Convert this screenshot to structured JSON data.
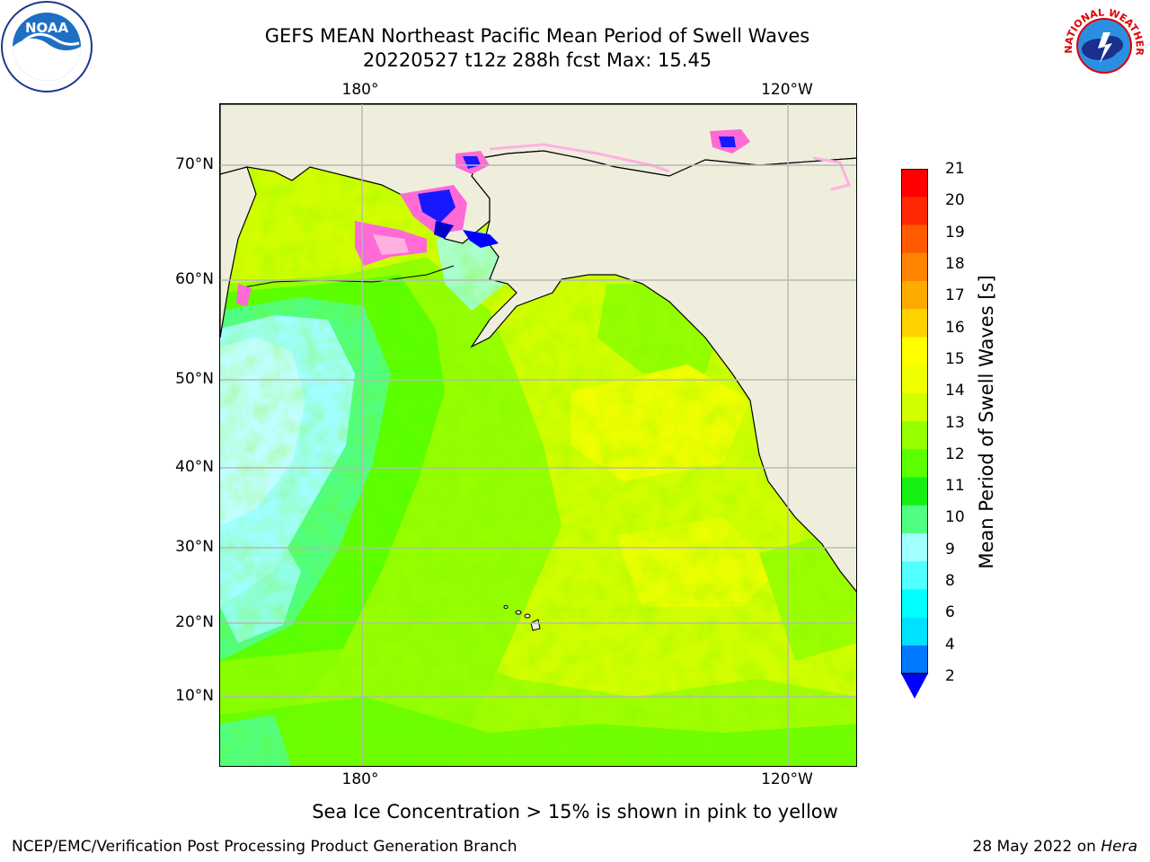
{
  "header": {
    "title_line1": "GEFS MEAN Northeast Pacific Mean Period of Swell Waves",
    "title_line2": "20220527 t12z 288h fcst   Max: 15.45"
  },
  "map": {
    "lon_labels_top": [
      "180°",
      "120°W"
    ],
    "lon_labels_bottom": [
      "180°",
      "120°W"
    ],
    "lat_labels": [
      "70°N",
      "60°N",
      "50°N",
      "40°N",
      "30°N",
      "20°N",
      "10°N"
    ],
    "colors": {
      "land": "#efeedd",
      "coast": "#000000",
      "grid": "#b8b8b8"
    }
  },
  "colorbar": {
    "title": "Mean Period of Swell Waves [s]",
    "tick_labels": [
      "21",
      "20",
      "19",
      "18",
      "17",
      "16",
      "15",
      "14",
      "13",
      "12",
      "11",
      "10",
      "9",
      "8",
      "6",
      "4",
      "2"
    ],
    "colors_top_to_bottom": [
      "#ff0000",
      "#ff2800",
      "#ff5a00",
      "#ff8200",
      "#ffaa00",
      "#ffd200",
      "#ffff00",
      "#f0ff00",
      "#d2ff00",
      "#96ff00",
      "#5aff00",
      "#14f014",
      "#50ff82",
      "#a0ffff",
      "#50ffff",
      "#00ffff",
      "#00e1ff",
      "#0078ff"
    ],
    "extend_color": "#0000ff"
  },
  "notes": {
    "sea_ice": "Sea Ice Concentration > 15% is shown in pink to yellow"
  },
  "footer": {
    "left": "NCEP/EMC/Verification Post Processing Product Generation Branch",
    "right_date": "28 May 2022 on",
    "right_host": "Hera"
  },
  "logos": {
    "noaa_text": "NOAA",
    "nws_text": "NATIONAL WEATHER SERVICE"
  }
}
